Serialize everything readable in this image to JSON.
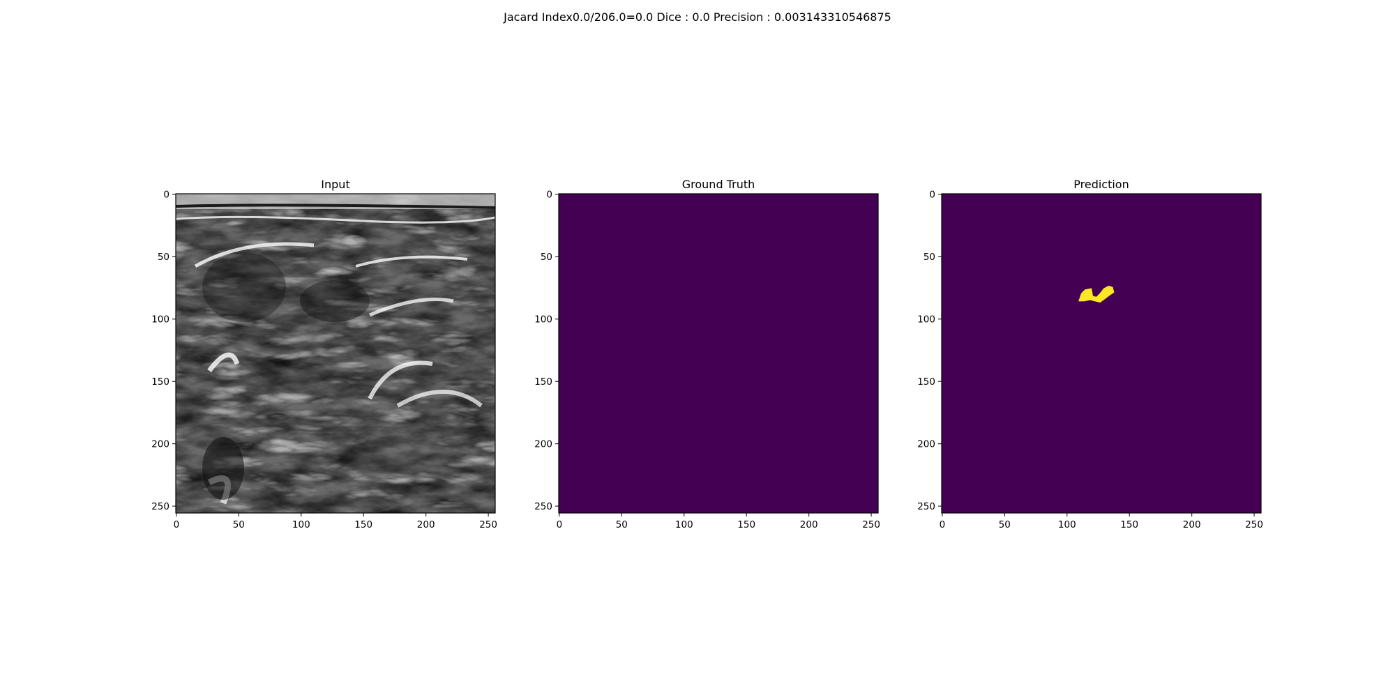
{
  "suptitle": "Jacard Index0.0/206.0=0.0 Dice : 0.0 Precision : 0.003143310546875",
  "colors": {
    "viridis_low": "#440154",
    "viridis_high": "#fde725",
    "axis": "#000000",
    "background": "#ffffff"
  },
  "chart_data": [
    {
      "type": "heatmap",
      "title": "Input",
      "colormap": "gray",
      "xlim": [
        0,
        256
      ],
      "ylim": [
        256,
        0
      ],
      "xticks": [
        0,
        50,
        100,
        150,
        200,
        250
      ],
      "yticks": [
        0,
        50,
        100,
        150,
        200,
        250
      ],
      "xticklabels": [
        "0",
        "50",
        "100",
        "150",
        "200",
        "250"
      ],
      "yticklabels": [
        "0",
        "50",
        "100",
        "150",
        "200",
        "250"
      ],
      "content": "grayscale ultrasound image"
    },
    {
      "type": "heatmap",
      "title": "Ground Truth",
      "colormap": "viridis",
      "xlim": [
        0,
        256
      ],
      "ylim": [
        256,
        0
      ],
      "xticks": [
        0,
        50,
        100,
        150,
        200,
        250
      ],
      "yticks": [
        0,
        50,
        100,
        150,
        200,
        250
      ],
      "xticklabels": [
        "0",
        "50",
        "100",
        "150",
        "200",
        "250"
      ],
      "yticklabels": [
        "0",
        "50",
        "100",
        "150",
        "200",
        "250"
      ],
      "mask_regions": []
    },
    {
      "type": "heatmap",
      "title": "Prediction",
      "colormap": "viridis",
      "xlim": [
        0,
        256
      ],
      "ylim": [
        256,
        0
      ],
      "xticks": [
        0,
        50,
        100,
        150,
        200,
        250
      ],
      "yticks": [
        0,
        50,
        100,
        150,
        200,
        250
      ],
      "xticklabels": [
        "0",
        "50",
        "100",
        "150",
        "200",
        "250"
      ],
      "yticklabels": [
        "0",
        "50",
        "100",
        "150",
        "200",
        "250"
      ],
      "mask_regions": [
        {
          "points": [
            [
              110,
              86
            ],
            [
              112,
              80
            ],
            [
              115,
              77
            ],
            [
              120,
              76
            ],
            [
              121,
              82
            ],
            [
              124,
              83
            ],
            [
              127,
              80
            ],
            [
              130,
              76
            ],
            [
              134,
              74
            ],
            [
              137,
              75
            ],
            [
              138,
              79
            ],
            [
              135,
              81
            ],
            [
              131,
              84
            ],
            [
              127,
              87
            ],
            [
              123,
              86
            ],
            [
              119,
              85
            ],
            [
              114,
              86
            ]
          ]
        }
      ]
    }
  ]
}
